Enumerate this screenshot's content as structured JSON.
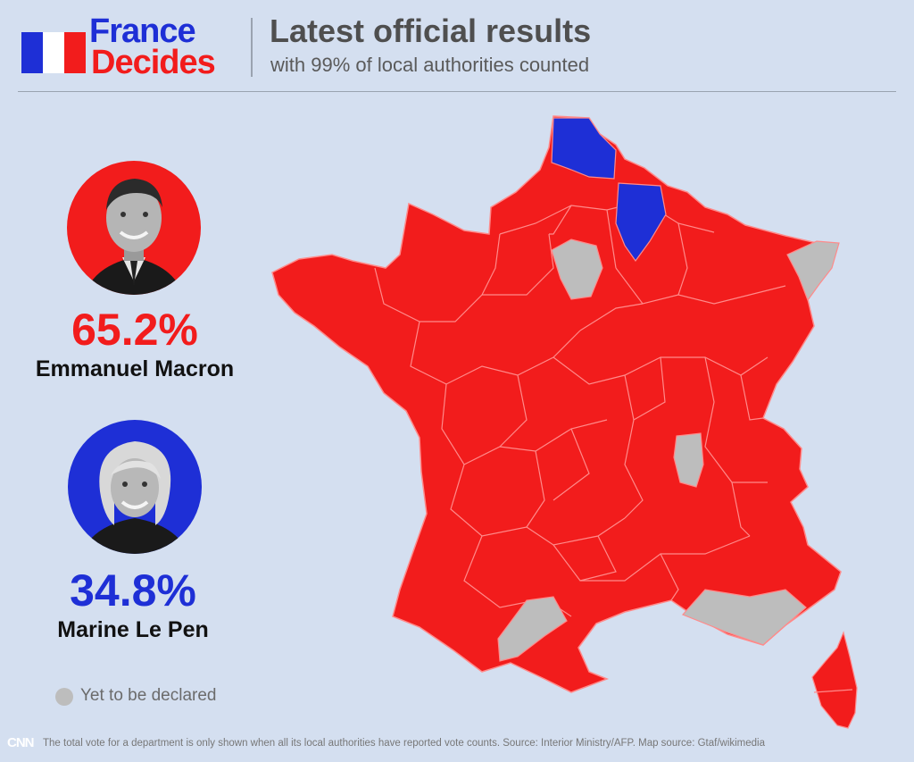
{
  "brand": {
    "line1": "France",
    "line2": "Decides"
  },
  "header": {
    "title": "Latest official results",
    "subtitle": "with 99% of local authorities counted"
  },
  "candidates": [
    {
      "name": "Emmanuel Macron",
      "percent": "65.2%",
      "color": "#f21c1c"
    },
    {
      "name": "Marine Le Pen",
      "percent": "34.8%",
      "color": "#1e2fd6"
    }
  ],
  "legend": {
    "undeclared_label": "Yet to be declared",
    "undeclared_color": "#bdbdbd"
  },
  "footer": {
    "network": "CNN",
    "note": "The total vote for a department is only shown when all its local authorities have reported vote counts. Source: Interior Ministry/AFP. Map source: Gtaf/wikimedia"
  },
  "map": {
    "macron_color": "#f21c1c",
    "lepen_color": "#1e2fd6",
    "undeclared_color": "#bdbdbd",
    "border_color": "#ff8a8a"
  }
}
